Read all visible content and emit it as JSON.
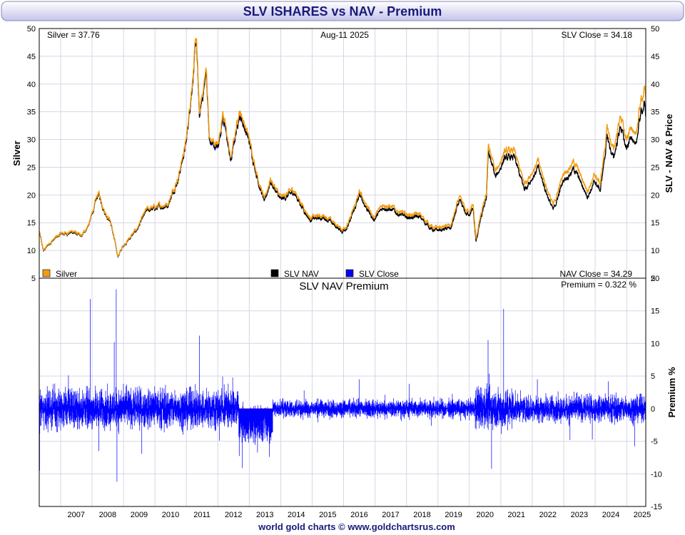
{
  "header": {
    "title": "SLV ISHARES vs NAV - Premium"
  },
  "top_panel": {
    "silver_readout": "Silver = 37.76",
    "date": "Aug-11  2025",
    "slv_close_readout": "SLV Close = 34.18",
    "nav_close_readout": "NAV Close = 34.29",
    "left_axis_label": "Silver",
    "right_axis_label": "SLV - NAV & Price",
    "legend": [
      {
        "label": "Silver",
        "color": "#f39c12"
      },
      {
        "label": "SLV NAV",
        "color": "#000000"
      },
      {
        "label": "SLV Close",
        "color": "#0000ff"
      }
    ]
  },
  "bottom_panel": {
    "title": "SLV NAV Premium",
    "premium_readout": "Premium = 0.322 %",
    "right_axis_label": "Premium %"
  },
  "footer": {
    "credit": "world gold charts © www.goldchartsrus.com"
  },
  "colors": {
    "silver": "#f39c12",
    "nav": "#000000",
    "close": "#0000ff",
    "premium": "#0000ff",
    "zero_line": "#ff66aa",
    "grid": "#d6d6e6",
    "title_bg_top": "#ffffff",
    "title_bg_bottom": "#c4c4ec"
  },
  "chart_data": [
    {
      "type": "line",
      "panel": "price",
      "x_range": [
        "2006-04-28",
        "2025-08-11"
      ],
      "ylim": [
        5,
        50
      ],
      "yticks": [
        5,
        10,
        15,
        20,
        25,
        30,
        35,
        40,
        45,
        50
      ],
      "xticks": [
        "2007",
        "2008",
        "2009",
        "2010",
        "2011",
        "2012",
        "2013",
        "2014",
        "2015",
        "2016",
        "2017",
        "2018",
        "2019",
        "2020",
        "2021",
        "2022",
        "2023",
        "2024",
        "2025"
      ],
      "grid": true,
      "legend_position": "bottom",
      "series": [
        {
          "name": "Silver",
          "x": [
            "2006-04-28",
            "2006-06-15",
            "2006-09-01",
            "2007-01-01",
            "2007-06-01",
            "2007-09-01",
            "2007-12-01",
            "2008-03-15",
            "2008-06-01",
            "2008-08-01",
            "2008-10-28",
            "2009-01-01",
            "2009-06-01",
            "2009-10-01",
            "2010-01-01",
            "2010-06-01",
            "2010-10-01",
            "2011-01-01",
            "2011-04-28",
            "2011-06-01",
            "2011-08-22",
            "2011-09-26",
            "2012-01-01",
            "2012-03-01",
            "2012-06-01",
            "2012-09-01",
            "2012-10-05",
            "2013-01-01",
            "2013-04-15",
            "2013-06-28",
            "2013-09-01",
            "2014-01-01",
            "2014-06-01",
            "2014-12-01",
            "2015-06-01",
            "2015-12-15",
            "2016-03-01",
            "2016-07-05",
            "2016-12-15",
            "2017-04-15",
            "2017-12-15",
            "2018-06-01",
            "2018-11-15",
            "2019-06-01",
            "2019-09-04",
            "2019-12-01",
            "2020-02-15",
            "2020-03-18",
            "2020-05-01",
            "2020-07-15",
            "2020-08-07",
            "2020-11-01",
            "2021-02-01",
            "2021-06-01",
            "2021-09-30",
            "2022-03-08",
            "2022-09-01",
            "2023-01-01",
            "2023-05-01",
            "2023-10-01",
            "2024-01-01",
            "2024-03-01",
            "2024-05-20",
            "2024-08-01",
            "2024-10-22",
            "2025-01-01",
            "2025-03-01",
            "2025-04-08",
            "2025-06-10",
            "2025-07-23",
            "2025-08-11"
          ],
          "values": [
            13.5,
            10.0,
            11.5,
            13.0,
            13.5,
            12.5,
            15.0,
            20.5,
            17.0,
            15.5,
            9.0,
            11.0,
            13.8,
            17.5,
            17.8,
            18.5,
            23.5,
            30.0,
            48.5,
            34.5,
            43.0,
            30.0,
            29.0,
            35.0,
            26.5,
            35.0,
            34.5,
            30.0,
            23.0,
            19.0,
            23.0,
            19.5,
            21.0,
            16.0,
            16.3,
            13.8,
            15.0,
            20.5,
            16.0,
            18.5,
            16.5,
            16.5,
            14.0,
            14.5,
            19.5,
            17.0,
            18.0,
            12.0,
            15.5,
            20.0,
            29.0,
            24.0,
            27.5,
            28.0,
            22.0,
            26.0,
            18.0,
            24.0,
            26.0,
            21.0,
            23.5,
            22.0,
            32.0,
            28.0,
            34.5,
            29.5,
            33.0,
            29.7,
            36.5,
            39.0,
            37.76
          ]
        },
        {
          "name": "SLV NAV",
          "x": [
            "2006-04-28",
            "2006-06-15",
            "2006-09-01",
            "2007-01-01",
            "2007-06-01",
            "2007-09-01",
            "2007-12-01",
            "2008-03-15",
            "2008-06-01",
            "2008-08-01",
            "2008-10-28",
            "2009-01-01",
            "2009-06-01",
            "2009-10-01",
            "2010-01-01",
            "2010-06-01",
            "2010-10-01",
            "2011-01-01",
            "2011-04-28",
            "2011-06-01",
            "2011-08-22",
            "2011-09-26",
            "2012-01-01",
            "2012-03-01",
            "2012-06-01",
            "2012-09-01",
            "2012-10-05",
            "2013-01-01",
            "2013-04-15",
            "2013-06-28",
            "2013-09-01",
            "2014-01-01",
            "2014-06-01",
            "2014-12-01",
            "2015-06-01",
            "2015-12-15",
            "2016-03-01",
            "2016-07-05",
            "2016-12-15",
            "2017-04-15",
            "2017-12-15",
            "2018-06-01",
            "2018-11-15",
            "2019-06-01",
            "2019-09-04",
            "2019-12-01",
            "2020-02-15",
            "2020-03-18",
            "2020-05-01",
            "2020-07-15",
            "2020-08-07",
            "2020-11-01",
            "2021-02-01",
            "2021-06-01",
            "2021-09-30",
            "2022-03-08",
            "2022-09-01",
            "2023-01-01",
            "2023-05-01",
            "2023-10-01",
            "2024-01-01",
            "2024-03-01",
            "2024-05-20",
            "2024-08-01",
            "2024-10-22",
            "2025-01-01",
            "2025-03-01",
            "2025-04-08",
            "2025-06-10",
            "2025-07-23",
            "2025-08-11"
          ],
          "values": [
            13.4,
            9.9,
            11.4,
            12.9,
            13.3,
            12.4,
            14.9,
            20.2,
            16.8,
            15.3,
            8.9,
            10.9,
            13.6,
            17.2,
            17.5,
            18.2,
            23.1,
            29.5,
            47.7,
            33.9,
            42.2,
            29.5,
            28.5,
            34.3,
            26.0,
            34.3,
            33.8,
            29.4,
            22.5,
            18.6,
            22.5,
            19.0,
            20.5,
            15.6,
            15.9,
            13.4,
            14.6,
            19.9,
            15.5,
            17.9,
            16.0,
            16.0,
            13.5,
            14.0,
            18.8,
            16.4,
            17.3,
            11.5,
            14.9,
            19.2,
            27.8,
            23.0,
            26.3,
            26.8,
            21.0,
            24.8,
            17.1,
            22.8,
            24.7,
            19.9,
            22.3,
            20.8,
            30.3,
            26.5,
            32.6,
            27.9,
            31.2,
            28.0,
            34.4,
            36.5,
            34.29
          ]
        },
        {
          "name": "SLV Close",
          "x": [
            "2006-04-28",
            "2006-06-15",
            "2006-09-01",
            "2007-01-01",
            "2007-06-01",
            "2007-09-01",
            "2007-12-01",
            "2008-03-15",
            "2008-06-01",
            "2008-08-01",
            "2008-10-28",
            "2009-01-01",
            "2009-06-01",
            "2009-10-01",
            "2010-01-01",
            "2010-06-01",
            "2010-10-01",
            "2011-01-01",
            "2011-04-28",
            "2011-06-01",
            "2011-08-22",
            "2011-09-26",
            "2012-01-01",
            "2012-03-01",
            "2012-06-01",
            "2012-09-01",
            "2012-10-05",
            "2013-01-01",
            "2013-04-15",
            "2013-06-28",
            "2013-09-01",
            "2014-01-01",
            "2014-06-01",
            "2014-12-01",
            "2015-06-01",
            "2015-12-15",
            "2016-03-01",
            "2016-07-05",
            "2016-12-15",
            "2017-04-15",
            "2017-12-15",
            "2018-06-01",
            "2018-11-15",
            "2019-06-01",
            "2019-09-04",
            "2019-12-01",
            "2020-02-15",
            "2020-03-18",
            "2020-05-01",
            "2020-07-15",
            "2020-08-07",
            "2020-11-01",
            "2021-02-01",
            "2021-06-01",
            "2021-09-30",
            "2022-03-08",
            "2022-09-01",
            "2023-01-01",
            "2023-05-01",
            "2023-10-01",
            "2024-01-01",
            "2024-03-01",
            "2024-05-20",
            "2024-08-01",
            "2024-10-22",
            "2025-01-01",
            "2025-03-01",
            "2025-04-08",
            "2025-06-10",
            "2025-07-23",
            "2025-08-11"
          ],
          "values": [
            13.4,
            9.9,
            11.4,
            12.9,
            13.3,
            12.4,
            14.9,
            20.2,
            16.8,
            15.3,
            8.9,
            10.9,
            13.6,
            17.2,
            17.5,
            18.2,
            23.1,
            29.5,
            47.6,
            33.8,
            42.0,
            29.3,
            28.3,
            34.0,
            25.8,
            34.1,
            33.6,
            29.3,
            22.4,
            18.5,
            22.5,
            19.0,
            20.5,
            15.6,
            15.9,
            13.4,
            14.6,
            19.9,
            15.5,
            17.9,
            16.0,
            16.0,
            13.5,
            14.0,
            18.8,
            16.4,
            17.3,
            11.5,
            14.9,
            19.2,
            27.9,
            23.0,
            26.3,
            26.8,
            21.0,
            24.8,
            17.1,
            22.8,
            24.7,
            19.9,
            22.3,
            20.8,
            30.3,
            26.5,
            32.6,
            27.9,
            31.2,
            28.0,
            34.4,
            36.5,
            34.18
          ]
        }
      ]
    },
    {
      "type": "line",
      "panel": "premium",
      "x_range": [
        "2006-04-28",
        "2025-08-11"
      ],
      "ylim": [
        -15,
        20
      ],
      "yticks": [
        -15,
        -10,
        -5,
        0,
        5,
        10,
        15,
        20
      ],
      "grid": true,
      "zero_line": 0,
      "series": [
        {
          "name": "Premium %",
          "x": [
            "2006-05-02",
            "2007-12-11",
            "2008-03-20",
            "2008-09-15",
            "2008-10-08",
            "2008-10-17",
            "2011-06-02",
            "2012-01-20",
            "2012-09-01",
            "2013-03-01",
            "2013-08-21",
            "2016-06-30",
            "2018-02-01",
            "2020-08-05",
            "2020-09-15",
            "2021-02-02",
            "2022-03-01",
            "2023-03-15",
            "2024-06-01",
            "2025-04-03",
            "2025-08-11"
          ],
          "values": [
            -9.5,
            16.8,
            -6.5,
            10.2,
            18.3,
            -11.2,
            11.2,
            -4.9,
            -4.3,
            -3.9,
            -7.4,
            4.5,
            3.8,
            10.5,
            -9.2,
            15.3,
            4.5,
            -4.8,
            4.2,
            -5.8,
            0.322
          ],
          "volatility": [
            {
              "from": "2006-04-28",
              "to": "2012-09-01",
              "amplitude": 2.2,
              "mean": 0.0
            },
            {
              "from": "2012-09-01",
              "to": "2013-10-01",
              "amplitude": 2.0,
              "mean": -2.2
            },
            {
              "from": "2013-10-01",
              "to": "2020-03-01",
              "amplitude": 1.0,
              "mean": 0.0
            },
            {
              "from": "2020-03-01",
              "to": "2021-06-01",
              "amplitude": 2.4,
              "mean": 0.0
            },
            {
              "from": "2021-06-01",
              "to": "2025-08-11",
              "amplitude": 1.5,
              "mean": 0.0
            }
          ]
        }
      ]
    }
  ]
}
